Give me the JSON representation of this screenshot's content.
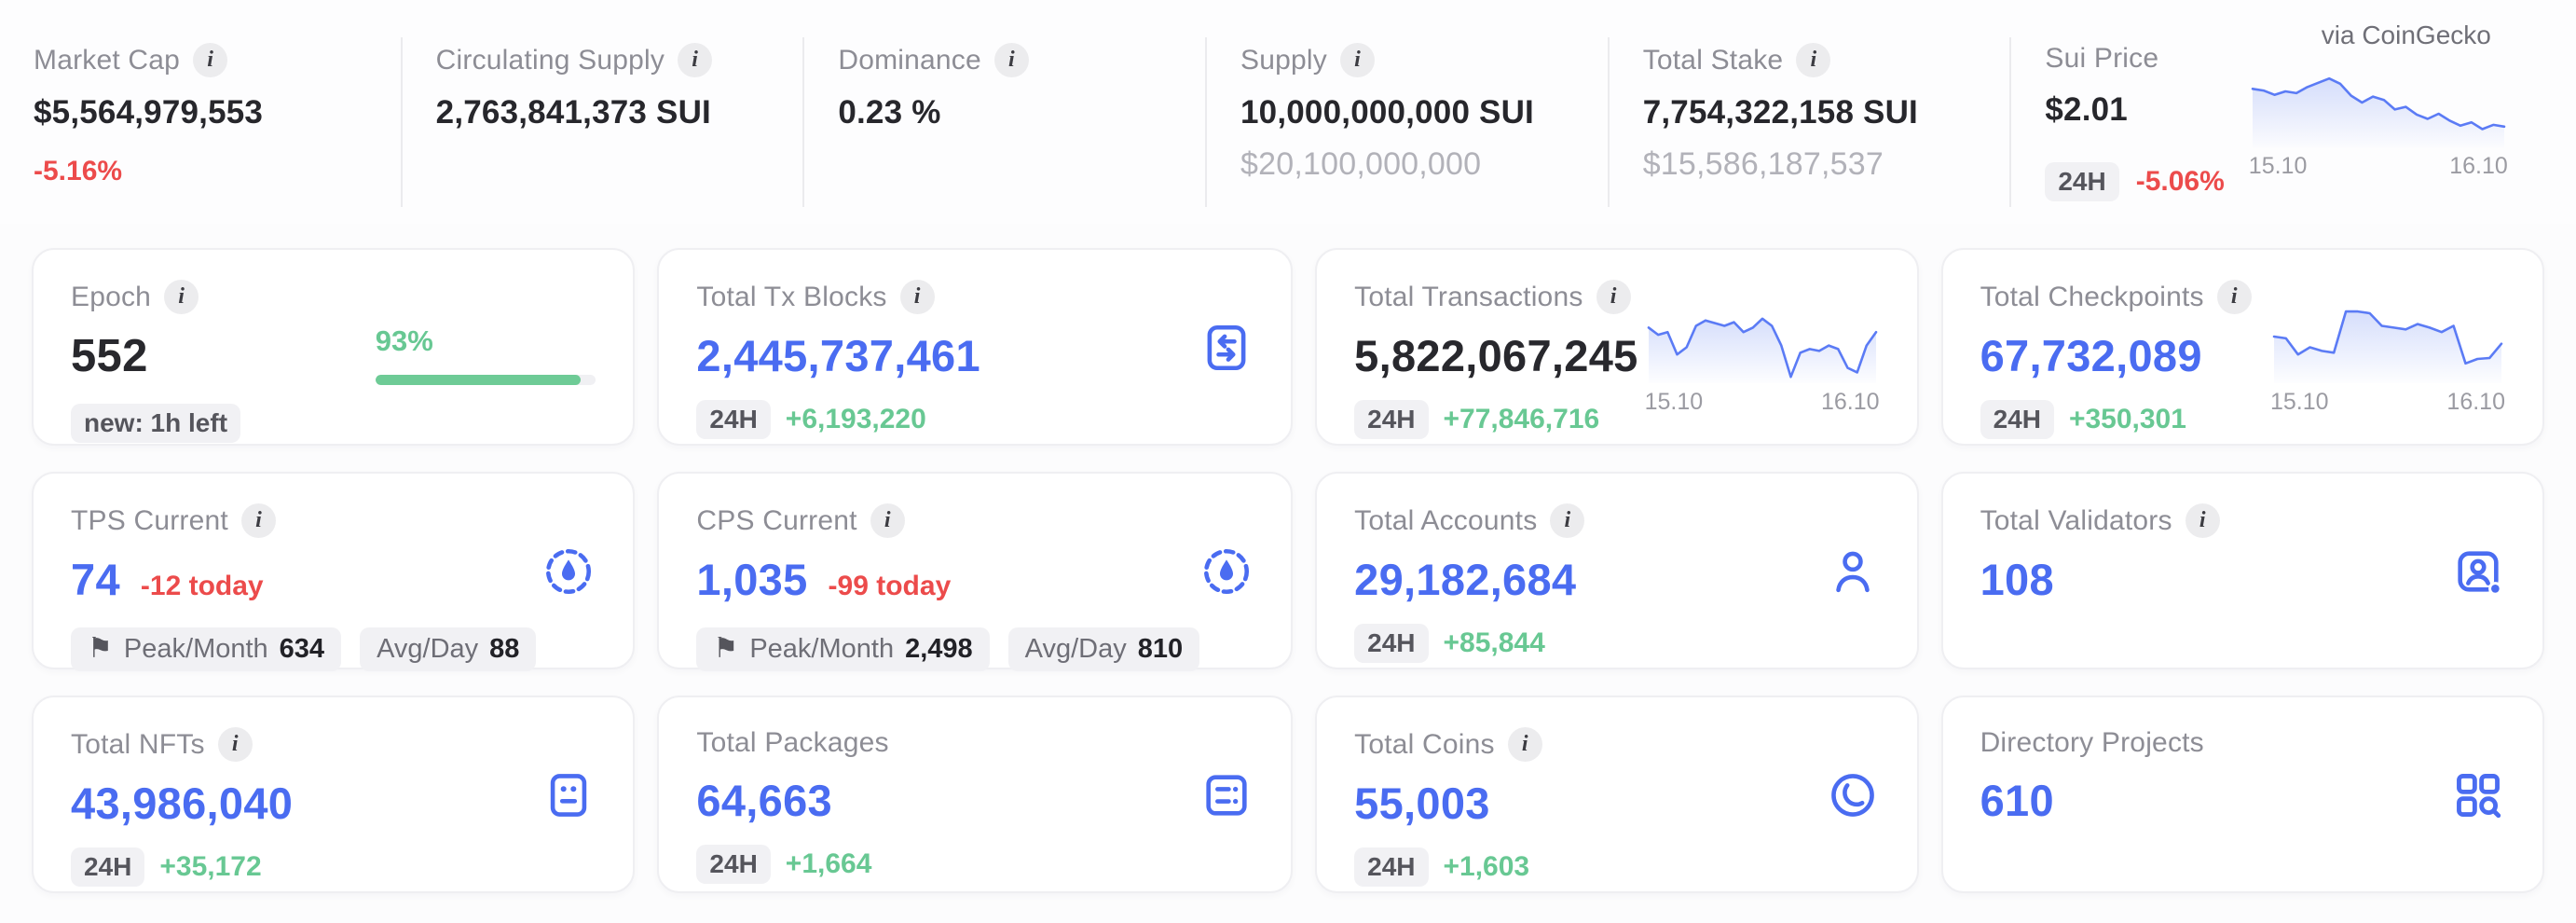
{
  "colors": {
    "accent_blue": "#4a6cf1",
    "positive_green": "#68c893",
    "negative_red": "#ec4b4b"
  },
  "topbar": {
    "via_label": "via CoinGecko",
    "market_cap": {
      "label": "Market Cap",
      "value": "$5,564,979,553",
      "delta": "-5.16%"
    },
    "circulating_supply": {
      "label": "Circulating Supply",
      "value": "2,763,841,373 SUI"
    },
    "dominance": {
      "label": "Dominance",
      "value": "0.23 %"
    },
    "supply": {
      "label": "Supply",
      "value": "10,000,000,000 SUI",
      "usd": "$20,100,000,000"
    },
    "total_stake": {
      "label": "Total Stake",
      "value": "7,754,322,158 SUI",
      "usd": "$15,586,187,537"
    },
    "sui_price": {
      "label": "Sui Price",
      "value": "$2.01",
      "period_badge": "24H",
      "delta": "-5.06%"
    },
    "price_chart": {
      "type": "line",
      "x_start": "15.10",
      "x_end": "16.10",
      "points": [
        66,
        64,
        59,
        63,
        61,
        68,
        73,
        78,
        72,
        58,
        50,
        57,
        53,
        42,
        45,
        36,
        31,
        37,
        29,
        23,
        27,
        19,
        24,
        22
      ]
    }
  },
  "cards": {
    "epoch": {
      "title": "Epoch",
      "value": "552",
      "badge": "new: 1h left",
      "progress_label": "93%",
      "progress_pct": 93
    },
    "tx_blocks": {
      "title": "Total Tx Blocks",
      "value": "2,445,737,461",
      "period_badge": "24H",
      "delta": "+6,193,220",
      "icon": "swap-icon"
    },
    "transactions": {
      "title": "Total Transactions",
      "value": "5,822,067,245",
      "period_badge": "24H",
      "delta": "+77,846,716",
      "chart": {
        "type": "line",
        "x_start": "15.10",
        "x_end": "16.10",
        "points": [
          60,
          52,
          55,
          30,
          38,
          62,
          68,
          65,
          62,
          66,
          55,
          60,
          70,
          62,
          40,
          5,
          32,
          36,
          34,
          40,
          36,
          15,
          10,
          40,
          55
        ]
      }
    },
    "checkpoints": {
      "title": "Total Checkpoints",
      "value": "67,732,089",
      "period_badge": "24H",
      "delta": "+350,301",
      "chart": {
        "type": "line",
        "x_start": "15.10",
        "x_end": "16.10",
        "points": [
          50,
          48,
          30,
          38,
          34,
          32,
          78,
          78,
          76,
          62,
          60,
          58,
          64,
          60,
          55,
          62,
          20,
          25,
          26,
          42
        ]
      }
    },
    "tps": {
      "title": "TPS Current",
      "value": "74",
      "delta": "-12 today",
      "peak_label": "Peak/Month",
      "peak_value": "634",
      "avg_label": "Avg/Day",
      "avg_value": "88",
      "icon": "gauge-icon"
    },
    "cps": {
      "title": "CPS Current",
      "value": "1,035",
      "delta": "-99 today",
      "peak_label": "Peak/Month",
      "peak_value": "2,498",
      "avg_label": "Avg/Day",
      "avg_value": "810",
      "icon": "gauge-icon"
    },
    "accounts": {
      "title": "Total Accounts",
      "value": "29,182,684",
      "period_badge": "24H",
      "delta": "+85,844",
      "icon": "person-icon"
    },
    "validators": {
      "title": "Total Validators",
      "value": "108",
      "icon": "id-badge-icon"
    },
    "nfts": {
      "title": "Total NFTs",
      "value": "43,986,040",
      "period_badge": "24H",
      "delta": "+35,172",
      "icon": "image-icon"
    },
    "packages": {
      "title": "Total Packages",
      "value": "64,663",
      "period_badge": "24H",
      "delta": "+1,664",
      "icon": "package-icon"
    },
    "coins": {
      "title": "Total Coins",
      "value": "55,003",
      "period_badge": "24H",
      "delta": "+1,603",
      "icon": "coin-icon"
    },
    "directory": {
      "title": "Directory Projects",
      "value": "610",
      "icon": "grid-search-icon"
    }
  }
}
